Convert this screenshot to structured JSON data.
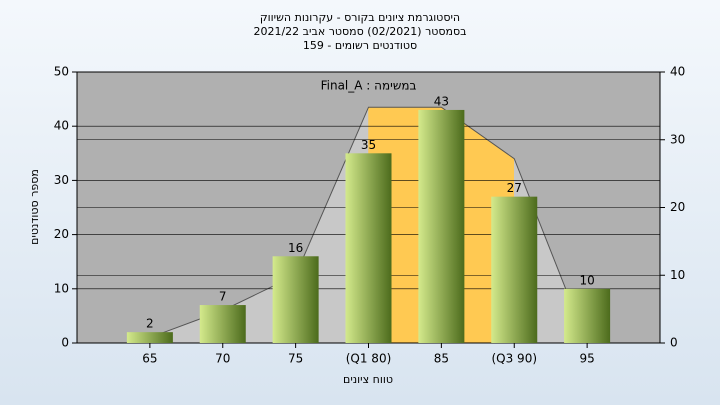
{
  "chart_data": {
    "type": "bar",
    "title": [
      "היסטוגרמת ציונים בקורס - עקרונות השיווק",
      "בסמסטר  (02/2021)  סמסטר אביב 2021/22",
      "סטודנטים רשומים - 159"
    ],
    "annotation": "Final_A : במשימה",
    "y_label": "מספר סטודנטים",
    "x_label": "טווח ציונים",
    "categories": [
      "65",
      "70",
      "75",
      "(Q1 80)",
      "85",
      "(Q3 90)",
      "95"
    ],
    "values": [
      2,
      7,
      16,
      35,
      43,
      27,
      10
    ],
    "bar_colors": [
      "#d4ea8c",
      "#4c6b1c"
    ],
    "area": {
      "values": [
        1,
        6,
        12.5,
        43.5,
        43.5,
        34,
        0
      ],
      "color": "#c8c8c8",
      "segment_colors": [
        "#c8c8c8",
        "#c8c8c8",
        "#c8c8c8",
        "#ffc952",
        "#ffc952",
        "#c8c8c8"
      ]
    },
    "plot_background": "#b0b0b0",
    "ylim": [
      0,
      50
    ],
    "yticks": [
      0,
      10,
      20,
      30,
      40,
      50
    ],
    "y2lim": [
      0,
      40
    ],
    "y2ticks": [
      0,
      10,
      20,
      30,
      40
    ],
    "grid": true
  }
}
